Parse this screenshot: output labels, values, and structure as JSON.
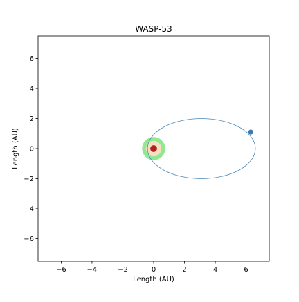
{
  "chart_data": {
    "type": "scatter",
    "title": "WASP-53",
    "xlabel": "Length (AU)",
    "ylabel": "Length (AU)",
    "xlim": [
      -7.5,
      7.5
    ],
    "ylim": [
      -7.5,
      7.5
    ],
    "x_ticks": [
      -6,
      -4,
      -2,
      0,
      2,
      4,
      6
    ],
    "y_ticks": [
      -6,
      -4,
      -2,
      0,
      2,
      4,
      6
    ],
    "x_tick_labels": [
      "−6",
      "−4",
      "−2",
      "0",
      "2",
      "4",
      "6"
    ],
    "y_tick_labels": [
      "−6",
      "−4",
      "−2",
      "0",
      "2",
      "4",
      "6"
    ],
    "grid": false,
    "star": {
      "x": 0,
      "y": 0,
      "habitable_zone": {
        "inner_au": 0.5,
        "outer_au": 0.75,
        "color": "#90e890"
      },
      "disk": {
        "radius_au": 0.5,
        "color": "#f5dfc0"
      },
      "core": {
        "radius_au": 0.22,
        "color": "#b22020"
      }
    },
    "orbit": {
      "center_x": 3.1,
      "center_y": 0,
      "semi_major_au": 7.0,
      "semi_minor_au": 2.0,
      "color": "#4a88b8"
    },
    "planet": {
      "x": 6.3,
      "y": 1.1,
      "color": "#3a7ab0"
    }
  }
}
